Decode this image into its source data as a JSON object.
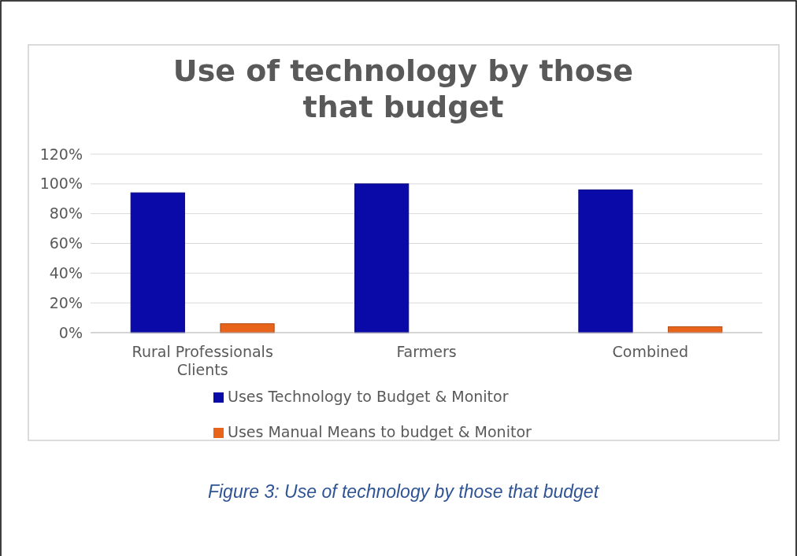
{
  "chart_data": {
    "type": "bar",
    "title": "Use of technology by those that budget",
    "categories": [
      "Rural Professionals Clients",
      "Farmers",
      "Combined"
    ],
    "series": [
      {
        "name": "Uses Technology to Budget & Monitor",
        "color": "#0a0aa8",
        "values": [
          94,
          100,
          96
        ]
      },
      {
        "name": "Uses Manual Means to budget & Monitor",
        "color": "#e8641a",
        "values": [
          6,
          0,
          4
        ]
      }
    ],
    "ylim": [
      0,
      120
    ],
    "yticks": [
      {
        "value": 0,
        "label": "0%"
      },
      {
        "value": 20,
        "label": "20%"
      },
      {
        "value": 40,
        "label": "40%"
      },
      {
        "value": 60,
        "label": "60%"
      },
      {
        "value": 80,
        "label": "80%"
      },
      {
        "value": 100,
        "label": "100%"
      },
      {
        "value": 120,
        "label": "120%"
      }
    ],
    "grid": "y",
    "legend": "bottom",
    "annotations": [
      "Figure 3: Use of technology by those that budget"
    ]
  }
}
